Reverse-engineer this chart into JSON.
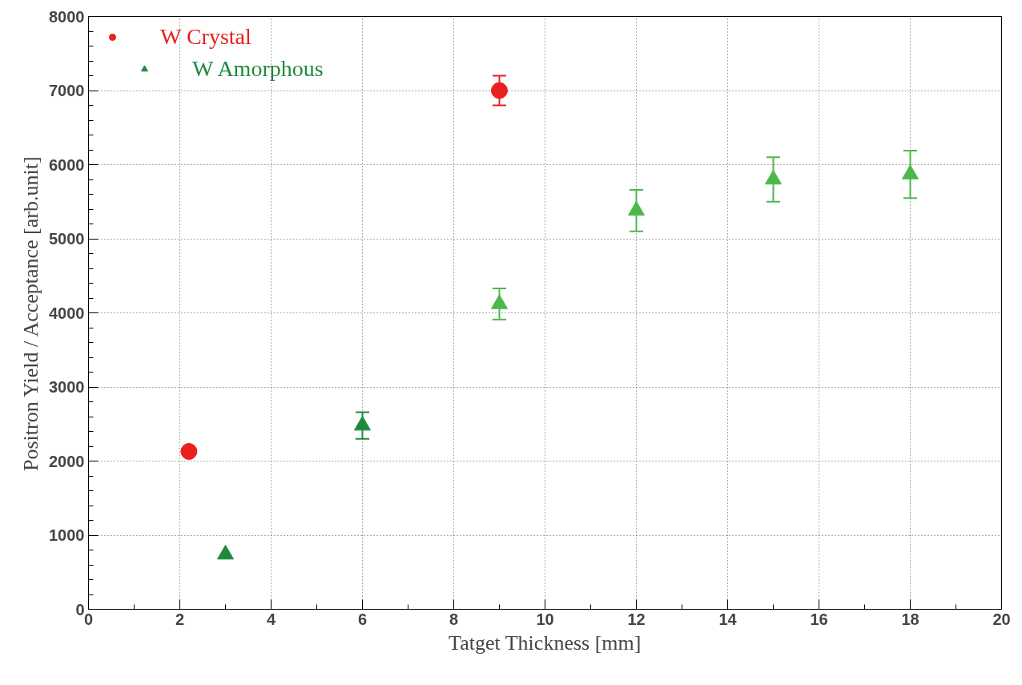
{
  "chart_data": {
    "type": "scatter",
    "xlabel": "Tatget Thickness [mm]",
    "ylabel": "Positron Yield / Acceptance [arb.unit]",
    "xlim": [
      0,
      20
    ],
    "xticks": [
      0,
      2,
      4,
      6,
      8,
      10,
      12,
      14,
      16,
      18,
      20
    ],
    "ylim": [
      0,
      8000
    ],
    "yticks": [
      0,
      1000,
      2000,
      3000,
      4000,
      5000,
      6000,
      7000,
      8000
    ],
    "grid": true,
    "legend": "top left",
    "series": [
      {
        "name": "W Crystal",
        "color": "#e8201e",
        "marker": "circle",
        "x": [
          2.2,
          9
        ],
        "values": [
          2130,
          7000
        ],
        "errors": [
          null,
          200
        ]
      },
      {
        "name": "W Amorphous",
        "color": "#1e8a3c",
        "marker": "triangle",
        "x": [
          3,
          6,
          9,
          12,
          15,
          18
        ],
        "values": [
          740,
          2480,
          4120,
          5380,
          5800,
          5870
        ],
        "errors": [
          null,
          180,
          210,
          280,
          300,
          320
        ],
        "colors": [
          "#1e8a3c",
          "#1e8a3c",
          "#4cb84c",
          "#4cb84c",
          "#4cb84c",
          "#4cb84c"
        ]
      }
    ]
  }
}
